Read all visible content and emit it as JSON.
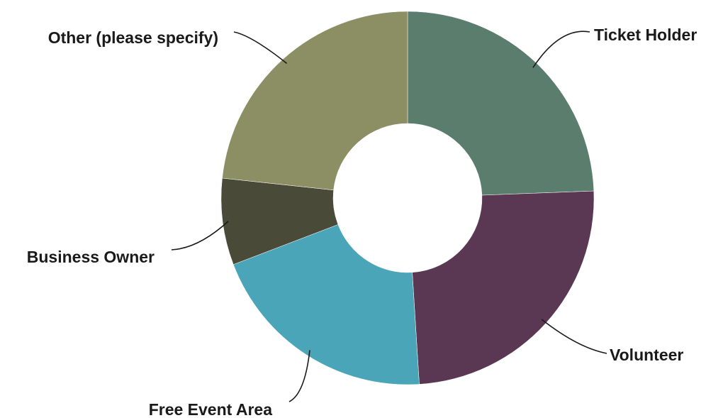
{
  "chart_data": {
    "type": "pie",
    "donut": true,
    "legend": "none",
    "labels": [
      "Ticket Holder",
      "Volunteer",
      "Free Event Area",
      "Business Owner",
      "Other (please specify)"
    ],
    "values": [
      24.4,
      24.6,
      20.2,
      7.5,
      23.3
    ],
    "unit": "%",
    "colors": [
      "#5b7d6e",
      "#5a3854",
      "#4aa5b8",
      "#4a4a38",
      "#8b8f63"
    ]
  }
}
